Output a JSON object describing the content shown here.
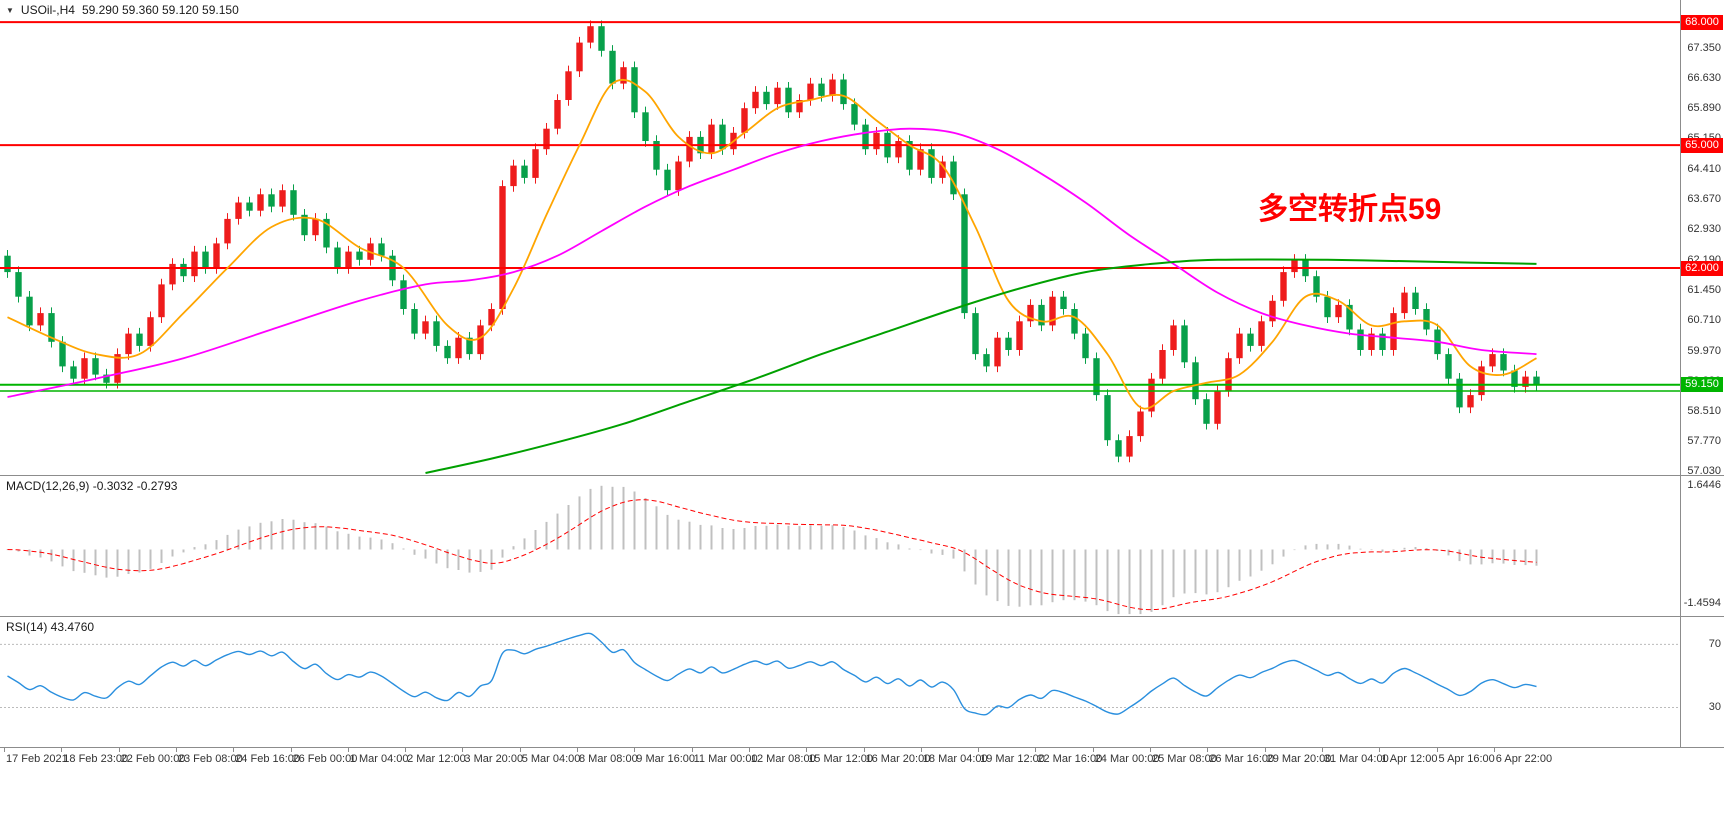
{
  "header": {
    "dropdown_icon": "▼",
    "symbol": "USOil-,H4",
    "ohlc": "59.290 59.360 59.120 59.150"
  },
  "annotation": {
    "text": "多空转折点59",
    "color": "#FF0000"
  },
  "chart_data": {
    "type": "candlestick",
    "symbol": "USOil-",
    "timeframe": "H4",
    "ohlc_display": {
      "open": "59.290",
      "high": "59.360",
      "low": "59.120",
      "close": "59.150"
    },
    "y_range": [
      56.95,
      68.54
    ],
    "up_color": "#EE1C1C",
    "down_color": "#08A04A",
    "wick": 0.14,
    "first_open": 62.3,
    "closes": [
      61.9,
      61.3,
      60.6,
      60.9,
      60.2,
      59.6,
      59.3,
      59.8,
      59.4,
      59.2,
      59.9,
      60.4,
      60.1,
      60.8,
      61.6,
      62.1,
      61.8,
      62.4,
      62.0,
      62.6,
      63.2,
      63.6,
      63.4,
      63.8,
      63.5,
      63.9,
      63.3,
      62.8,
      63.2,
      62.5,
      62.0,
      62.4,
      62.2,
      62.6,
      62.3,
      61.7,
      61.0,
      60.4,
      60.7,
      60.1,
      59.8,
      60.3,
      59.9,
      60.6,
      61.0,
      64.0,
      64.5,
      64.2,
      64.9,
      65.4,
      66.1,
      66.8,
      67.5,
      67.9,
      67.3,
      66.5,
      66.9,
      65.8,
      65.1,
      64.4,
      63.9,
      64.6,
      65.2,
      64.8,
      65.5,
      64.9,
      65.3,
      65.9,
      66.3,
      66.0,
      66.4,
      65.8,
      66.1,
      66.5,
      66.2,
      66.6,
      66.0,
      65.5,
      64.9,
      65.3,
      64.7,
      65.1,
      64.4,
      64.9,
      64.2,
      64.6,
      63.8,
      60.9,
      59.9,
      59.6,
      60.3,
      60.0,
      60.7,
      61.1,
      60.6,
      61.3,
      61.0,
      60.4,
      59.8,
      58.9,
      57.8,
      57.4,
      57.9,
      58.5,
      59.3,
      60.0,
      60.6,
      59.7,
      58.8,
      58.2,
      59.0,
      59.8,
      60.4,
      60.1,
      60.7,
      61.2,
      61.9,
      62.2,
      61.8,
      61.3,
      60.8,
      61.1,
      60.5,
      60.0,
      60.4,
      60.0,
      60.9,
      61.4,
      61.0,
      60.5,
      59.9,
      59.3,
      58.6,
      58.9,
      59.6,
      59.9,
      59.5,
      59.1,
      59.35,
      59.15
    ],
    "hlines": [
      {
        "value": 68.0,
        "color": "#FF0000",
        "width": 2
      },
      {
        "value": 65.0,
        "color": "#FF0000",
        "width": 2
      },
      {
        "value": 62.0,
        "color": "#FF0000",
        "width": 2
      },
      {
        "value": 59.15,
        "color": "#00B400",
        "width": 2
      },
      {
        "value": 59.0,
        "color": "#00B400",
        "width": 1.5
      }
    ],
    "moving_averages": [
      {
        "name": "fast-ma",
        "color": "#FFA500",
        "points": [
          [
            0,
            60.8
          ],
          [
            4,
            60.3
          ],
          [
            8,
            59.9
          ],
          [
            12,
            59.9
          ],
          [
            16,
            60.9
          ],
          [
            20,
            62.0
          ],
          [
            24,
            63.0
          ],
          [
            28,
            63.2
          ],
          [
            32,
            62.5
          ],
          [
            36,
            62.0
          ],
          [
            40,
            60.6
          ],
          [
            43,
            60.3
          ],
          [
            46,
            61.5
          ],
          [
            49,
            63.3
          ],
          [
            52,
            65.0
          ],
          [
            55,
            66.5
          ],
          [
            58,
            66.3
          ],
          [
            61,
            65.2
          ],
          [
            64,
            64.8
          ],
          [
            67,
            65.3
          ],
          [
            70,
            65.9
          ],
          [
            73,
            66.1
          ],
          [
            76,
            66.2
          ],
          [
            79,
            65.6
          ],
          [
            82,
            65.0
          ],
          [
            85,
            64.5
          ],
          [
            88,
            63.0
          ],
          [
            91,
            61.2
          ],
          [
            94,
            60.7
          ],
          [
            97,
            60.8
          ],
          [
            100,
            59.9
          ],
          [
            103,
            58.6
          ],
          [
            106,
            59.0
          ],
          [
            109,
            59.2
          ],
          [
            112,
            59.4
          ],
          [
            115,
            60.2
          ],
          [
            118,
            61.3
          ],
          [
            121,
            61.2
          ],
          [
            124,
            60.6
          ],
          [
            127,
            60.7
          ],
          [
            130,
            60.6
          ],
          [
            133,
            59.6
          ],
          [
            136,
            59.4
          ],
          [
            139,
            59.8
          ]
        ]
      },
      {
        "name": "medium-ma",
        "color": "#FF00FF",
        "points": [
          [
            0,
            58.85
          ],
          [
            8,
            59.3
          ],
          [
            16,
            59.8
          ],
          [
            24,
            60.5
          ],
          [
            32,
            61.2
          ],
          [
            38,
            61.6
          ],
          [
            42,
            61.7
          ],
          [
            46,
            61.9
          ],
          [
            50,
            62.3
          ],
          [
            54,
            62.9
          ],
          [
            58,
            63.5
          ],
          [
            62,
            64.0
          ],
          [
            66,
            64.4
          ],
          [
            70,
            64.8
          ],
          [
            74,
            65.1
          ],
          [
            78,
            65.3
          ],
          [
            82,
            65.4
          ],
          [
            86,
            65.3
          ],
          [
            90,
            64.9
          ],
          [
            94,
            64.3
          ],
          [
            98,
            63.6
          ],
          [
            102,
            62.8
          ],
          [
            106,
            62.1
          ],
          [
            110,
            61.4
          ],
          [
            114,
            60.9
          ],
          [
            118,
            60.6
          ],
          [
            122,
            60.4
          ],
          [
            126,
            60.3
          ],
          [
            130,
            60.2
          ],
          [
            134,
            60.0
          ],
          [
            139,
            59.9
          ]
        ]
      },
      {
        "name": "slow-ma",
        "color": "#00A000",
        "points": [
          [
            38,
            57.0
          ],
          [
            44,
            57.35
          ],
          [
            50,
            57.75
          ],
          [
            56,
            58.2
          ],
          [
            62,
            58.75
          ],
          [
            68,
            59.3
          ],
          [
            74,
            59.9
          ],
          [
            80,
            60.45
          ],
          [
            86,
            61.0
          ],
          [
            92,
            61.5
          ],
          [
            98,
            61.9
          ],
          [
            104,
            62.1
          ],
          [
            110,
            62.2
          ],
          [
            120,
            62.2
          ],
          [
            130,
            62.15
          ],
          [
            139,
            62.1
          ]
        ]
      }
    ],
    "price_axis_labels": [
      "67.350",
      "66.630",
      "65.890",
      "65.150",
      "64.410",
      "63.670",
      "62.930",
      "62.190",
      "61.450",
      "60.710",
      "59.970",
      "59.230",
      "58.510",
      "57.770",
      "57.030"
    ],
    "price_badges": [
      {
        "text": "68.000",
        "value": 68.0,
        "color": "#FF0000"
      },
      {
        "text": "65.000",
        "value": 65.0,
        "color": "#FF0000"
      },
      {
        "text": "62.000",
        "value": 62.0,
        "color": "#FF0000"
      },
      {
        "text": "59.150",
        "value": 59.15,
        "color": "#00B400"
      }
    ],
    "time_labels": [
      "17 Feb 2021",
      "18 Feb 23:00",
      "22 Feb 00:00",
      "23 Feb 08:00",
      "24 Feb 16:00",
      "26 Feb 00:00",
      "1 Mar 04:00",
      "2 Mar 12:00",
      "3 Mar 20:00",
      "5 Mar 04:00",
      "8 Mar 08:00",
      "9 Mar 16:00",
      "11 Mar 00:00",
      "12 Mar 08:00",
      "15 Mar 12:00",
      "16 Mar 20:00",
      "18 Mar 04:00",
      "19 Mar 12:00",
      "22 Mar 16:00",
      "24 Mar 00:00",
      "25 Mar 08:00",
      "26 Mar 16:00",
      "29 Mar 20:00",
      "31 Mar 04:00",
      "1 Apr 12:00",
      "5 Apr 16:00",
      "6 Apr 22:00"
    ],
    "macd": {
      "label": "MACD(12,26,9) -0.3032 -0.2793",
      "params": [
        12,
        26,
        9
      ],
      "value": -0.3032,
      "signal_value": -0.2793,
      "range": [
        -1.4594,
        1.6446
      ],
      "axis_labels": [
        "1.6446",
        "-1.4594"
      ],
      "histogram_color": "#C0C0C0",
      "signal_color": "#FF0000"
    },
    "rsi": {
      "label": "RSI(14) 43.4760",
      "period": 14,
      "value": 43.476,
      "range": [
        5,
        88
      ],
      "levels": [
        70,
        30
      ],
      "axis_labels": [
        "70",
        "30"
      ],
      "line_color": "#2A8FDE",
      "level_color": "#BBBBBB"
    }
  }
}
